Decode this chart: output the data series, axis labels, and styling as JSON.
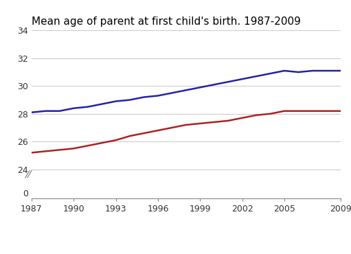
{
  "title": "Mean age of parent at first child's birth. 1987-2009",
  "years": [
    1987,
    1988,
    1989,
    1990,
    1991,
    1992,
    1993,
    1994,
    1995,
    1996,
    1997,
    1998,
    1999,
    2000,
    2001,
    2002,
    2003,
    2004,
    2005,
    2006,
    2007,
    2008,
    2009
  ],
  "mother": [
    25.2,
    25.3,
    25.4,
    25.5,
    25.7,
    25.9,
    26.1,
    26.4,
    26.6,
    26.8,
    27.0,
    27.2,
    27.3,
    27.4,
    27.5,
    27.7,
    27.9,
    28.0,
    28.2,
    28.2,
    28.2,
    28.2,
    28.2
  ],
  "father": [
    28.1,
    28.2,
    28.2,
    28.4,
    28.5,
    28.7,
    28.9,
    29.0,
    29.2,
    29.3,
    29.5,
    29.7,
    29.9,
    30.1,
    30.3,
    30.5,
    30.7,
    30.9,
    31.1,
    31.0,
    31.1,
    31.1,
    31.1
  ],
  "mother_color": "#aa2222",
  "father_color": "#2222aa",
  "yticks_top": [
    24,
    26,
    28,
    30,
    32,
    34
  ],
  "yticks_bottom": [
    0
  ],
  "xticks": [
    1987,
    1990,
    1993,
    1996,
    1999,
    2002,
    2005,
    2009
  ],
  "background_color": "#ffffff",
  "grid_color": "#cccccc",
  "line_width": 1.8,
  "title_fontsize": 11
}
